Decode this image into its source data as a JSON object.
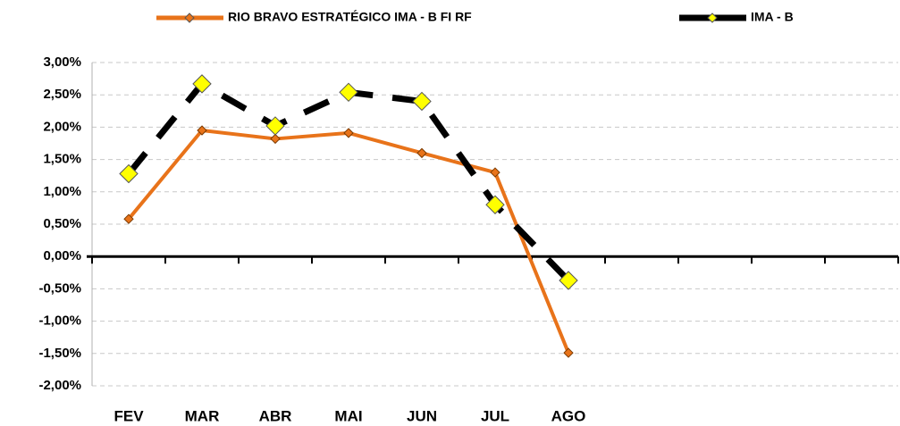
{
  "chart_data": {
    "type": "line",
    "categories": [
      "FEV",
      "MAR",
      "ABR",
      "MAI",
      "JUN",
      "JUL",
      "AGO",
      null,
      null,
      null,
      null
    ],
    "series": [
      {
        "name": "RIO BRAVO ESTRATÉGICO IMA - B FI RF",
        "color": "#e8731a",
        "marker_color": "#e8731a",
        "values": [
          0.58,
          1.95,
          1.82,
          1.91,
          1.6,
          1.3,
          -1.49,
          null,
          null,
          null,
          null
        ]
      },
      {
        "name": "IMA - B",
        "color": "#000000",
        "marker_color": "#ffff00",
        "dashed": true,
        "values": [
          1.28,
          2.67,
          2.02,
          2.54,
          2.4,
          0.8,
          -0.37,
          null,
          null,
          null,
          null
        ]
      }
    ],
    "ylim": [
      -2,
      3
    ],
    "yticks": [
      {
        "value": -2,
        "label": "-2,00%"
      },
      {
        "value": -1.5,
        "label": "-1,50%"
      },
      {
        "value": -1,
        "label": "-1,00%"
      },
      {
        "value": -0.5,
        "label": "-0,50%"
      },
      {
        "value": 0,
        "label": "0,00%"
      },
      {
        "value": 0.5,
        "label": "0,50%"
      },
      {
        "value": 1,
        "label": "1,00%"
      },
      {
        "value": 1.5,
        "label": "1,50%"
      },
      {
        "value": 2,
        "label": "2,00%"
      },
      {
        "value": 2.5,
        "label": "2,50%"
      },
      {
        "value": 3,
        "label": "3,00%"
      }
    ],
    "grid": true,
    "legend": "top"
  }
}
